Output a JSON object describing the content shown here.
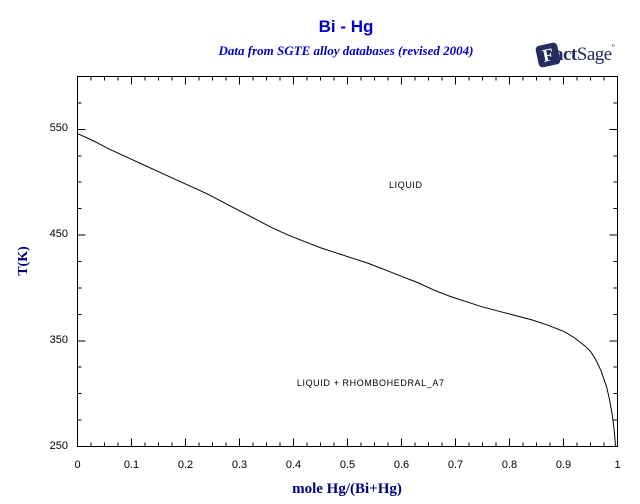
{
  "header": {
    "title": "Bi - Hg",
    "subtitle": "Data from SGTE alloy databases (revised 2004)",
    "title_color": "#0000cc",
    "logo": {
      "f": "F",
      "act": "act",
      "sage": "Sage",
      "tm": "”",
      "color": "#222c5e"
    }
  },
  "chart_data": {
    "type": "line",
    "title": "Bi - Hg",
    "subtitle": "Data from SGTE alloy databases (revised 2004)",
    "xlabel": "mole Hg/(Bi+Hg)",
    "ylabel": "T(K)",
    "xlim": [
      0,
      1
    ],
    "ylim": [
      250,
      600
    ],
    "grid": false,
    "legend": false,
    "curve_color": "#000000",
    "axis_title_color": "#000080",
    "x_major_ticks": [
      0,
      0.1,
      0.2,
      0.3,
      0.4,
      0.5,
      0.6,
      0.7,
      0.8,
      0.9,
      1
    ],
    "x_tick_labels": [
      "0",
      "0.1",
      "0.2",
      "0.3",
      "0.4",
      "0.5",
      "0.6",
      "0.7",
      "0.8",
      "0.9",
      "1"
    ],
    "x_minor_step": 0.025,
    "y_major_ticks": [
      250,
      350,
      450,
      550
    ],
    "y_tick_labels": [
      "250",
      "350",
      "450",
      "550"
    ],
    "y_minor_step": 25,
    "series": [
      {
        "name": "liquidus",
        "points": [
          [
            0,
            546
          ],
          [
            0.03,
            539
          ],
          [
            0.06,
            531
          ],
          [
            0.09,
            524
          ],
          [
            0.12,
            517
          ],
          [
            0.15,
            510
          ],
          [
            0.18,
            503
          ],
          [
            0.21,
            496
          ],
          [
            0.24,
            489
          ],
          [
            0.27,
            481
          ],
          [
            0.3,
            473
          ],
          [
            0.33,
            465
          ],
          [
            0.36,
            457
          ],
          [
            0.39,
            450
          ],
          [
            0.42,
            444
          ],
          [
            0.45,
            438
          ],
          [
            0.48,
            433
          ],
          [
            0.51,
            428
          ],
          [
            0.54,
            423
          ],
          [
            0.57,
            417
          ],
          [
            0.6,
            411
          ],
          [
            0.63,
            405
          ],
          [
            0.66,
            398
          ],
          [
            0.69,
            392
          ],
          [
            0.72,
            387
          ],
          [
            0.75,
            382
          ],
          [
            0.78,
            378
          ],
          [
            0.81,
            374
          ],
          [
            0.84,
            370
          ],
          [
            0.87,
            365
          ],
          [
            0.9,
            359
          ],
          [
            0.92,
            353
          ],
          [
            0.94,
            345
          ],
          [
            0.95,
            340
          ],
          [
            0.96,
            332
          ],
          [
            0.97,
            321
          ],
          [
            0.98,
            306
          ],
          [
            0.985,
            295
          ],
          [
            0.99,
            281
          ],
          [
            0.993,
            269
          ],
          [
            0.995,
            259
          ],
          [
            0.9963,
            250
          ]
        ]
      }
    ],
    "region_labels": [
      {
        "text": "LIQUID",
        "x": 0.608,
        "T": 497
      },
      {
        "text": "LIQUID + RHOMBOHEDRAL_A7",
        "x": 0.543,
        "T": 310
      }
    ]
  }
}
